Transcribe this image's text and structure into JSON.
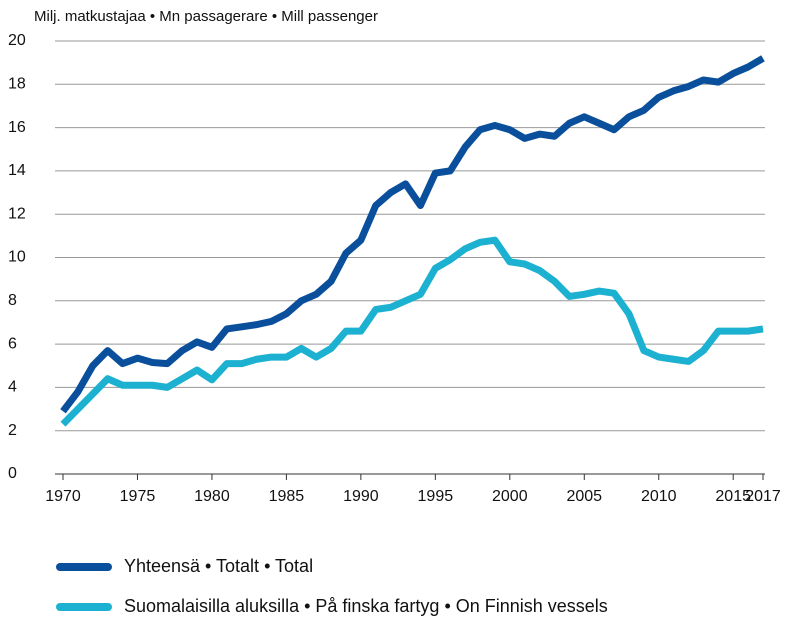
{
  "chart_data": {
    "type": "line",
    "ylabel": "Milj. matkustajaa • Mn passagerare • Mill passenger",
    "x": [
      1970,
      1971,
      1972,
      1973,
      1974,
      1975,
      1976,
      1977,
      1978,
      1979,
      1980,
      1981,
      1982,
      1983,
      1984,
      1985,
      1986,
      1987,
      1988,
      1989,
      1990,
      1991,
      1992,
      1993,
      1994,
      1995,
      1996,
      1997,
      1998,
      1999,
      2000,
      2001,
      2002,
      2003,
      2004,
      2005,
      2006,
      2007,
      2008,
      2009,
      2010,
      2011,
      2012,
      2013,
      2014,
      2015,
      2016,
      2017
    ],
    "series": [
      {
        "name": "Yhteensä • Totalt • Total",
        "color": "#0a4f9c",
        "values": [
          2.9,
          3.8,
          5.0,
          5.7,
          5.1,
          5.35,
          5.15,
          5.1,
          5.7,
          6.1,
          5.85,
          6.7,
          6.8,
          6.9,
          7.05,
          7.4,
          8.0,
          8.3,
          8.9,
          10.2,
          10.8,
          12.4,
          13.0,
          13.4,
          12.4,
          13.9,
          14.0,
          15.1,
          15.9,
          16.1,
          15.9,
          15.5,
          15.7,
          15.6,
          16.2,
          16.5,
          16.2,
          15.9,
          16.5,
          16.8,
          17.4,
          17.7,
          17.9,
          18.2,
          18.1,
          18.5,
          18.8,
          19.2
        ]
      },
      {
        "name": "Suomalaisilla aluksilla • På finska fartyg • On Finnish vessels",
        "color": "#1cb1d0",
        "values": [
          2.3,
          3.0,
          3.7,
          4.4,
          4.1,
          4.1,
          4.1,
          4.0,
          4.4,
          4.8,
          4.35,
          5.1,
          5.1,
          5.3,
          5.4,
          5.4,
          5.8,
          5.4,
          5.8,
          6.6,
          6.6,
          7.6,
          7.7,
          8.0,
          8.3,
          9.5,
          9.9,
          10.4,
          10.7,
          10.8,
          9.8,
          9.7,
          9.4,
          8.9,
          8.2,
          8.3,
          8.45,
          8.35,
          7.4,
          5.7,
          5.4,
          5.3,
          5.2,
          5.7,
          6.6,
          6.6,
          6.6,
          6.7
        ]
      }
    ],
    "xlim": [
      1970,
      2017
    ],
    "xticks": [
      1970,
      1975,
      1980,
      1985,
      1990,
      1995,
      2000,
      2005,
      2010,
      2015,
      2017
    ],
    "ylim": [
      0,
      20
    ],
    "yticks": [
      0,
      2,
      4,
      6,
      8,
      10,
      12,
      14,
      16,
      18,
      20
    ],
    "grid": true,
    "legend": "bottom"
  }
}
